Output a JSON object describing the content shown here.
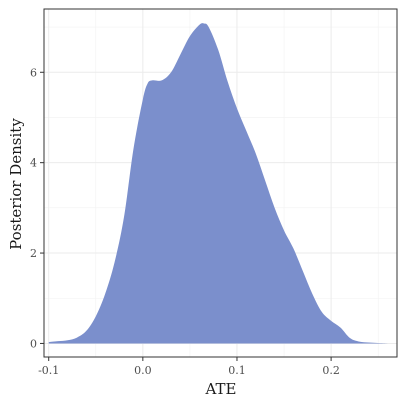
{
  "chart_data": {
    "type": "area",
    "title": "",
    "xlabel": "ATE",
    "ylabel": "Posterior Density",
    "xlim": [
      -0.105,
      0.27
    ],
    "ylim": [
      -0.3,
      7.4
    ],
    "grid": true,
    "xticks": [
      -0.1,
      0.0,
      0.1,
      0.2
    ],
    "xtick_labels": [
      "-0.1",
      "0.0",
      "0.1",
      "0.2"
    ],
    "yticks": [
      0,
      2,
      4,
      6
    ],
    "ytick_labels": [
      "0",
      "2",
      "4",
      "6"
    ],
    "fill_color": "#7b8fcc",
    "series": [
      {
        "x": [
          -0.1,
          -0.09,
          -0.08,
          -0.07,
          -0.06,
          -0.05,
          -0.04,
          -0.03,
          -0.02,
          -0.01,
          0.0,
          0.005,
          0.01,
          0.02,
          0.03,
          0.04,
          0.05,
          0.06,
          0.065,
          0.07,
          0.08,
          0.09,
          0.1,
          0.11,
          0.12,
          0.13,
          0.14,
          0.15,
          0.16,
          0.17,
          0.18,
          0.19,
          0.2,
          0.21,
          0.22,
          0.23,
          0.24,
          0.25,
          0.26
        ],
        "y": [
          0.03,
          0.05,
          0.07,
          0.13,
          0.28,
          0.6,
          1.1,
          1.8,
          2.8,
          4.3,
          5.4,
          5.75,
          5.82,
          5.82,
          6.0,
          6.4,
          6.8,
          7.05,
          7.08,
          7.0,
          6.5,
          5.8,
          5.2,
          4.7,
          4.2,
          3.6,
          3.0,
          2.5,
          2.1,
          1.6,
          1.1,
          0.7,
          0.5,
          0.35,
          0.12,
          0.04,
          0.02,
          0.01,
          0.0
        ]
      }
    ]
  }
}
